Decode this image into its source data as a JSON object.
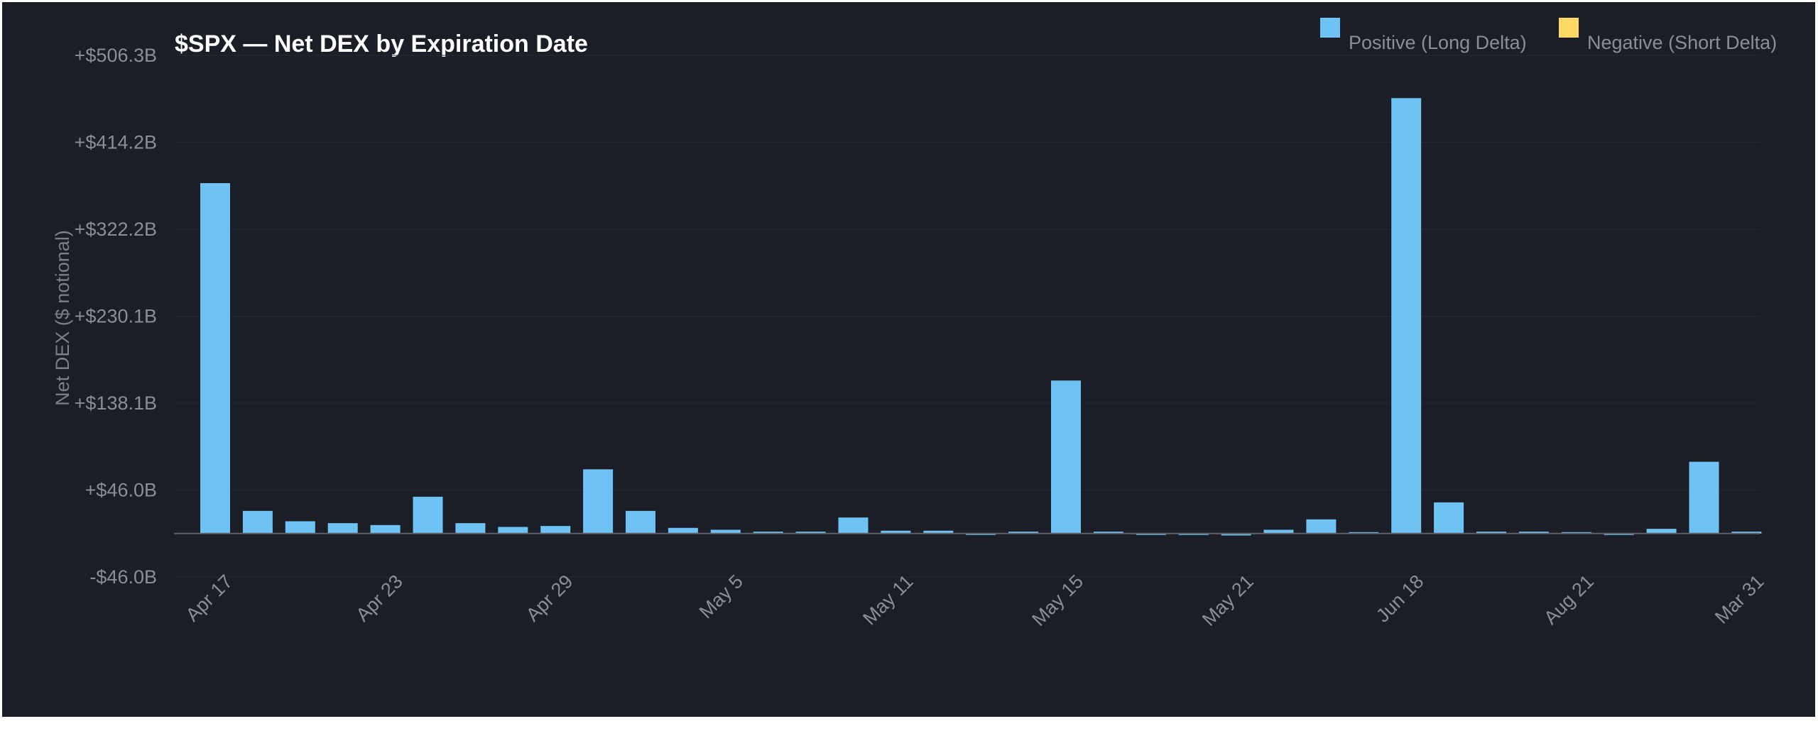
{
  "chart_data": {
    "type": "bar",
    "title": "$SPX — Net DEX by Expiration Date",
    "ylabel": "Net DEX ($ notional)",
    "xlabel": "",
    "legend": {
      "placement": "top-right",
      "entries": [
        {
          "name": "Positive (Long Delta)",
          "color": "#6ec3f4"
        },
        {
          "name": "Negative (Short Delta)",
          "color": "#ffd866"
        }
      ]
    },
    "y_ticks": [
      -46.0,
      46.0,
      138.1,
      230.1,
      322.2,
      414.2,
      506.3
    ],
    "y_tick_labels": [
      "-$46.0B",
      "+$46.0B",
      "+$138.1B",
      "+$230.1B",
      "+$322.2B",
      "+$414.2B",
      "+$506.3B"
    ],
    "ylim": [
      -46.0,
      506.3
    ],
    "unit": "B",
    "x_tick_labels": [
      {
        "index": 0,
        "label": "Apr 17"
      },
      {
        "index": 4,
        "label": "Apr 23"
      },
      {
        "index": 8,
        "label": "Apr 29"
      },
      {
        "index": 12,
        "label": "May 5"
      },
      {
        "index": 16,
        "label": "May 11"
      },
      {
        "index": 20,
        "label": "May 15"
      },
      {
        "index": 24,
        "label": "May 21"
      },
      {
        "index": 28,
        "label": "Jun 18"
      },
      {
        "index": 32,
        "label": "Aug 21"
      },
      {
        "index": 36,
        "label": "Mar 31"
      }
    ],
    "grid": true,
    "values": [
      371,
      24,
      13,
      11,
      9,
      39,
      11,
      7,
      8,
      68,
      24,
      6,
      4,
      2,
      2,
      17,
      3,
      3,
      -1,
      2,
      162,
      2,
      -1,
      -1,
      -2,
      4,
      15,
      1,
      461,
      33,
      2,
      2,
      1,
      -1,
      5,
      76,
      2
    ]
  }
}
